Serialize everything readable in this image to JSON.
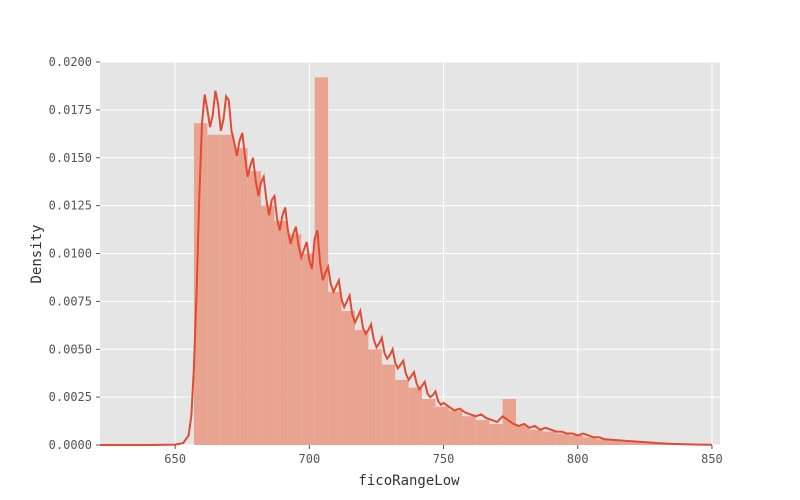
{
  "chart_data": {
    "type": "histogram",
    "xlabel": "ficoRangeLow",
    "ylabel": "Density",
    "xlim": [
      622,
      853
    ],
    "ylim": [
      0,
      0.02
    ],
    "x_ticks": [
      650,
      700,
      750,
      800,
      850
    ],
    "x_tick_labels": [
      "650",
      "700",
      "750",
      "800",
      "850"
    ],
    "y_ticks": [
      0,
      0.0025,
      0.005,
      0.0075,
      0.01,
      0.0125,
      0.015,
      0.0175,
      0.02
    ],
    "y_tick_labels": [
      "0.0000",
      "0.0025",
      "0.0050",
      "0.0075",
      "0.0100",
      "0.0125",
      "0.0150",
      "0.0175",
      "0.0200"
    ],
    "grid": true,
    "colors": {
      "background": "#e5e5e5",
      "grid": "#ffffff",
      "bars": "#e8a491",
      "kde_line": "#e24a33"
    },
    "series": [
      {
        "kind": "histogram bars",
        "bin_edges": [
          657,
          662,
          667,
          672,
          677,
          682,
          687,
          692,
          697,
          702,
          707,
          712,
          717,
          722,
          727,
          732,
          737,
          742,
          747,
          752,
          757,
          762,
          767,
          772,
          777,
          782,
          787,
          792,
          797,
          802,
          807,
          812,
          817,
          822,
          827,
          832,
          837,
          842,
          847,
          850
        ],
        "values": [
          0.0168,
          0.0162,
          0.0162,
          0.0155,
          0.0143,
          0.0125,
          0.0117,
          0.011,
          0.01,
          0.0192,
          0.008,
          0.007,
          0.006,
          0.005,
          0.0042,
          0.0034,
          0.003,
          0.0024,
          0.002,
          0.0018,
          0.0015,
          0.0013,
          0.0011,
          0.0024,
          0.001,
          0.0008,
          0.0007,
          0.0006,
          0.0005,
          0.0004,
          0.0003,
          0.00025,
          0.0002,
          0.00015,
          0.0001,
          8e-05,
          6e-05,
          4e-05,
          2e-05
        ]
      },
      {
        "kind": "kde line",
        "x": [
          622,
          640,
          650,
          653,
          655,
          656,
          657,
          658,
          659,
          660,
          661,
          662,
          663,
          664,
          665,
          666,
          667,
          668,
          669,
          670,
          671,
          672,
          673,
          674,
          675,
          676,
          677,
          678,
          679,
          680,
          681,
          682,
          683,
          684,
          685,
          686,
          687,
          688,
          689,
          690,
          691,
          692,
          693,
          694,
          695,
          696,
          697,
          698,
          699,
          700,
          701,
          702,
          703,
          704,
          705,
          706,
          707,
          708,
          709,
          710,
          711,
          712,
          713,
          714,
          715,
          716,
          717,
          718,
          719,
          720,
          721,
          722,
          723,
          724,
          725,
          726,
          727,
          728,
          729,
          730,
          731,
          732,
          733,
          734,
          735,
          736,
          737,
          738,
          739,
          740,
          741,
          742,
          743,
          744,
          745,
          746,
          747,
          748,
          749,
          750,
          752,
          754,
          756,
          758,
          760,
          762,
          764,
          766,
          768,
          770,
          772,
          774,
          776,
          778,
          780,
          782,
          784,
          786,
          788,
          790,
          792,
          794,
          796,
          798,
          800,
          802,
          804,
          806,
          808,
          810,
          815,
          820,
          825,
          830,
          835,
          840,
          845,
          850
        ],
        "y": [
          0,
          0,
          2e-05,
          0.0001,
          0.0005,
          0.0015,
          0.004,
          0.008,
          0.013,
          0.0168,
          0.0183,
          0.0175,
          0.0166,
          0.0172,
          0.0185,
          0.0178,
          0.0164,
          0.017,
          0.0182,
          0.018,
          0.0164,
          0.0158,
          0.0151,
          0.0159,
          0.0163,
          0.0151,
          0.014,
          0.0146,
          0.015,
          0.0138,
          0.013,
          0.0137,
          0.014,
          0.0128,
          0.012,
          0.0128,
          0.013,
          0.0118,
          0.0112,
          0.012,
          0.0124,
          0.0112,
          0.0105,
          0.011,
          0.0114,
          0.0104,
          0.0098,
          0.0102,
          0.0106,
          0.0096,
          0.0092,
          0.0108,
          0.0112,
          0.0095,
          0.0086,
          0.009,
          0.0093,
          0.0084,
          0.008,
          0.0083,
          0.0086,
          0.0076,
          0.0072,
          0.0075,
          0.0078,
          0.0068,
          0.0064,
          0.0067,
          0.007,
          0.0061,
          0.0058,
          0.006,
          0.0063,
          0.0055,
          0.0051,
          0.0053,
          0.0056,
          0.0048,
          0.0045,
          0.0047,
          0.005,
          0.0043,
          0.004,
          0.0042,
          0.0044,
          0.0037,
          0.0034,
          0.0036,
          0.0038,
          0.0032,
          0.0029,
          0.0031,
          0.0033,
          0.0027,
          0.0025,
          0.0026,
          0.0028,
          0.0023,
          0.0021,
          0.0022,
          0.002,
          0.0018,
          0.0019,
          0.0017,
          0.0016,
          0.0015,
          0.0016,
          0.0014,
          0.0013,
          0.0012,
          0.0015,
          0.0013,
          0.0011,
          0.001,
          0.0011,
          0.0009,
          0.001,
          0.0008,
          0.0009,
          0.0008,
          0.0007,
          0.0007,
          0.0006,
          0.0006,
          0.0005,
          0.0006,
          0.0005,
          0.0004,
          0.0004,
          0.0003,
          0.00025,
          0.0002,
          0.00015,
          0.0001,
          6e-05,
          4e-05,
          2e-05,
          1e-05
        ]
      }
    ]
  }
}
